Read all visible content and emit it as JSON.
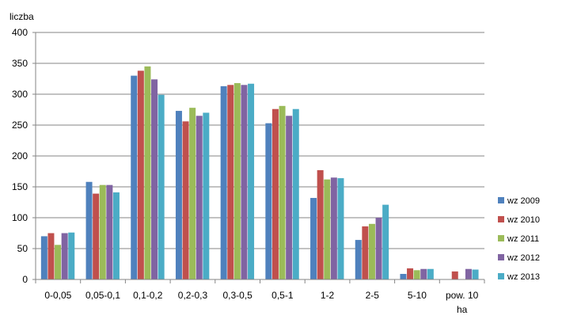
{
  "chart_data": {
    "type": "bar",
    "ylabel": "liczba",
    "ylim": [
      0,
      400
    ],
    "yticks": [
      0,
      50,
      100,
      150,
      200,
      250,
      300,
      350,
      400
    ],
    "grid": true,
    "legend_position": "right",
    "categories": [
      "0-0,05",
      "0,05-0,1",
      "0,1-0,2",
      "0,2-0,3",
      "0,3-0,5",
      "0,5-1",
      "1-2",
      "2-5",
      "5-10",
      [
        "pow. 10",
        "ha"
      ]
    ],
    "series": [
      {
        "name": "wz 2009",
        "color": "#4f81bd",
        "values": [
          70,
          158,
          330,
          273,
          313,
          253,
          132,
          64,
          9,
          0
        ]
      },
      {
        "name": "wz 2010",
        "color": "#c0504d",
        "values": [
          75,
          139,
          338,
          256,
          315,
          276,
          177,
          86,
          18,
          13
        ]
      },
      {
        "name": "wz 2011",
        "color": "#9bbb59",
        "values": [
          56,
          153,
          345,
          278,
          318,
          281,
          162,
          90,
          15,
          0
        ]
      },
      {
        "name": "wz 2012",
        "color": "#8064a2",
        "values": [
          75,
          153,
          324,
          265,
          315,
          265,
          165,
          100,
          17,
          17
        ]
      },
      {
        "name": "wz 2013",
        "color": "#4bacc6",
        "values": [
          76,
          141,
          299,
          270,
          317,
          276,
          164,
          121,
          17,
          16
        ]
      }
    ]
  }
}
